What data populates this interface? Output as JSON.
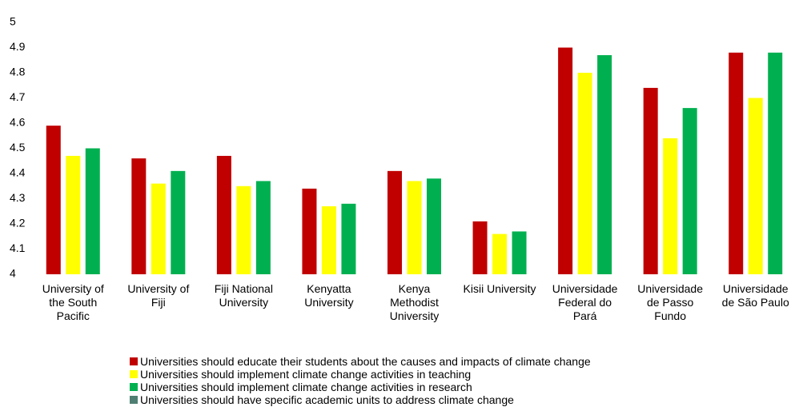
{
  "chart_data": {
    "type": "bar",
    "categories": [
      "University of the South Pacific",
      "University of Fiji",
      "Fiji National University",
      "Kenyatta University",
      "Kenya Methodist University",
      "Kisii University",
      "Universidade Federal do Pará",
      "Universidade de Passo Fundo",
      "Universidade de São Paulo"
    ],
    "series": [
      {
        "name": "Universities should educate their students about the causes and impacts of climate change",
        "color": "#c00000",
        "values": [
          4.59,
          4.46,
          4.47,
          4.34,
          4.41,
          4.21,
          4.9,
          4.74,
          4.88
        ]
      },
      {
        "name": "Universities should implement climate change activities in teaching",
        "color": "#ffff00",
        "values": [
          4.47,
          4.36,
          4.35,
          4.27,
          4.37,
          4.16,
          4.8,
          4.54,
          4.7
        ]
      },
      {
        "name": "Universities should implement climate change activities in research",
        "color": "#00b050",
        "values": [
          4.5,
          4.41,
          4.37,
          4.28,
          4.38,
          4.17,
          4.87,
          4.66,
          4.88
        ]
      },
      {
        "name": "Universities should have specific academic units to address climate change",
        "color": "#4f7f72",
        "values": [
          null,
          null,
          null,
          null,
          null,
          null,
          null,
          null,
          null
        ]
      }
    ],
    "ylim": [
      4,
      5
    ],
    "yticks": [
      4,
      4.1,
      4.2,
      4.3,
      4.4,
      4.5,
      4.6,
      4.7,
      4.8,
      4.9,
      5
    ],
    "legend": "bottom"
  }
}
